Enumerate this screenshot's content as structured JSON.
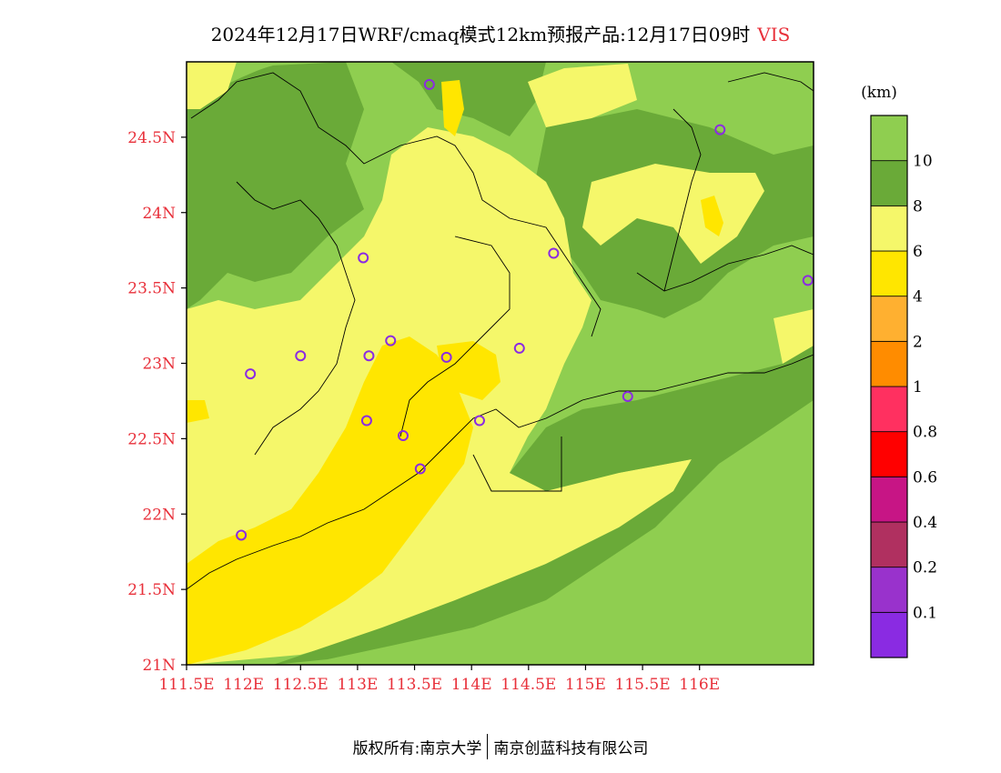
{
  "title": {
    "main": "2024年12月17日WRF/cmaq模式12km预报产品:12月17日09时",
    "variable": "VIS",
    "variable_color": "#e8303a"
  },
  "map": {
    "lat_range": [
      21,
      25
    ],
    "lon_range": [
      111.5,
      117
    ],
    "lat_ticks": [
      {
        "value": 21,
        "label": "21N"
      },
      {
        "value": 21.5,
        "label": "21.5N"
      },
      {
        "value": 22,
        "label": "22N"
      },
      {
        "value": 22.5,
        "label": "22.5N"
      },
      {
        "value": 23,
        "label": "23N"
      },
      {
        "value": 23.5,
        "label": "23.5N"
      },
      {
        "value": 24,
        "label": "24N"
      },
      {
        "value": 24.5,
        "label": "24.5N"
      }
    ],
    "lon_ticks": [
      {
        "value": 111.5,
        "label": "111.5E"
      },
      {
        "value": 112,
        "label": "112E"
      },
      {
        "value": 112.5,
        "label": "112.5E"
      },
      {
        "value": 113,
        "label": "113E"
      },
      {
        "value": 113.5,
        "label": "113.5E"
      },
      {
        "value": 114,
        "label": "114E"
      },
      {
        "value": 114.5,
        "label": "114.5E"
      },
      {
        "value": 115,
        "label": "115E"
      },
      {
        "value": 115.5,
        "label": "115.5E"
      },
      {
        "value": 116,
        "label": "116E"
      }
    ],
    "tick_label_color": "#e8303a",
    "stations": [
      {
        "lon": 113.63,
        "lat": 24.85
      },
      {
        "lon": 116.18,
        "lat": 24.55
      },
      {
        "lon": 113.05,
        "lat": 23.7
      },
      {
        "lon": 114.72,
        "lat": 23.73
      },
      {
        "lon": 116.95,
        "lat": 23.55
      },
      {
        "lon": 112.5,
        "lat": 23.05
      },
      {
        "lon": 113.1,
        "lat": 23.05
      },
      {
        "lon": 113.29,
        "lat": 23.15
      },
      {
        "lon": 113.78,
        "lat": 23.04
      },
      {
        "lon": 114.42,
        "lat": 23.1
      },
      {
        "lon": 112.06,
        "lat": 22.93
      },
      {
        "lon": 113.08,
        "lat": 22.62
      },
      {
        "lon": 113.4,
        "lat": 22.52
      },
      {
        "lon": 114.07,
        "lat": 22.62
      },
      {
        "lon": 115.37,
        "lat": 22.78
      },
      {
        "lon": 113.55,
        "lat": 22.3
      },
      {
        "lon": 111.98,
        "lat": 21.86
      }
    ],
    "station_color": "#8b2be2"
  },
  "colorbar": {
    "unit": "(km)",
    "bins": [
      {
        "color": "#8a2be2",
        "label": "0.1"
      },
      {
        "color": "#9932cc",
        "label": "0.2"
      },
      {
        "color": "#b03060",
        "label": "0.4"
      },
      {
        "color": "#c71585",
        "label": "0.6"
      },
      {
        "color": "#ff0000",
        "label": "0.8"
      },
      {
        "color": "#ff3060",
        "label": "1"
      },
      {
        "color": "#ff8c00",
        "label": "2"
      },
      {
        "color": "#ffb030",
        "label": "4"
      },
      {
        "color": "#ffe600",
        "label": "6"
      },
      {
        "color": "#f5f76a",
        "label": "8"
      },
      {
        "color": "#6aaa38",
        "label": "10"
      },
      {
        "color": "#8fce50",
        "label": ""
      }
    ]
  },
  "footer": {
    "left": "版权所有:南京大学",
    "right": "南京创蓝科技有限公司"
  }
}
